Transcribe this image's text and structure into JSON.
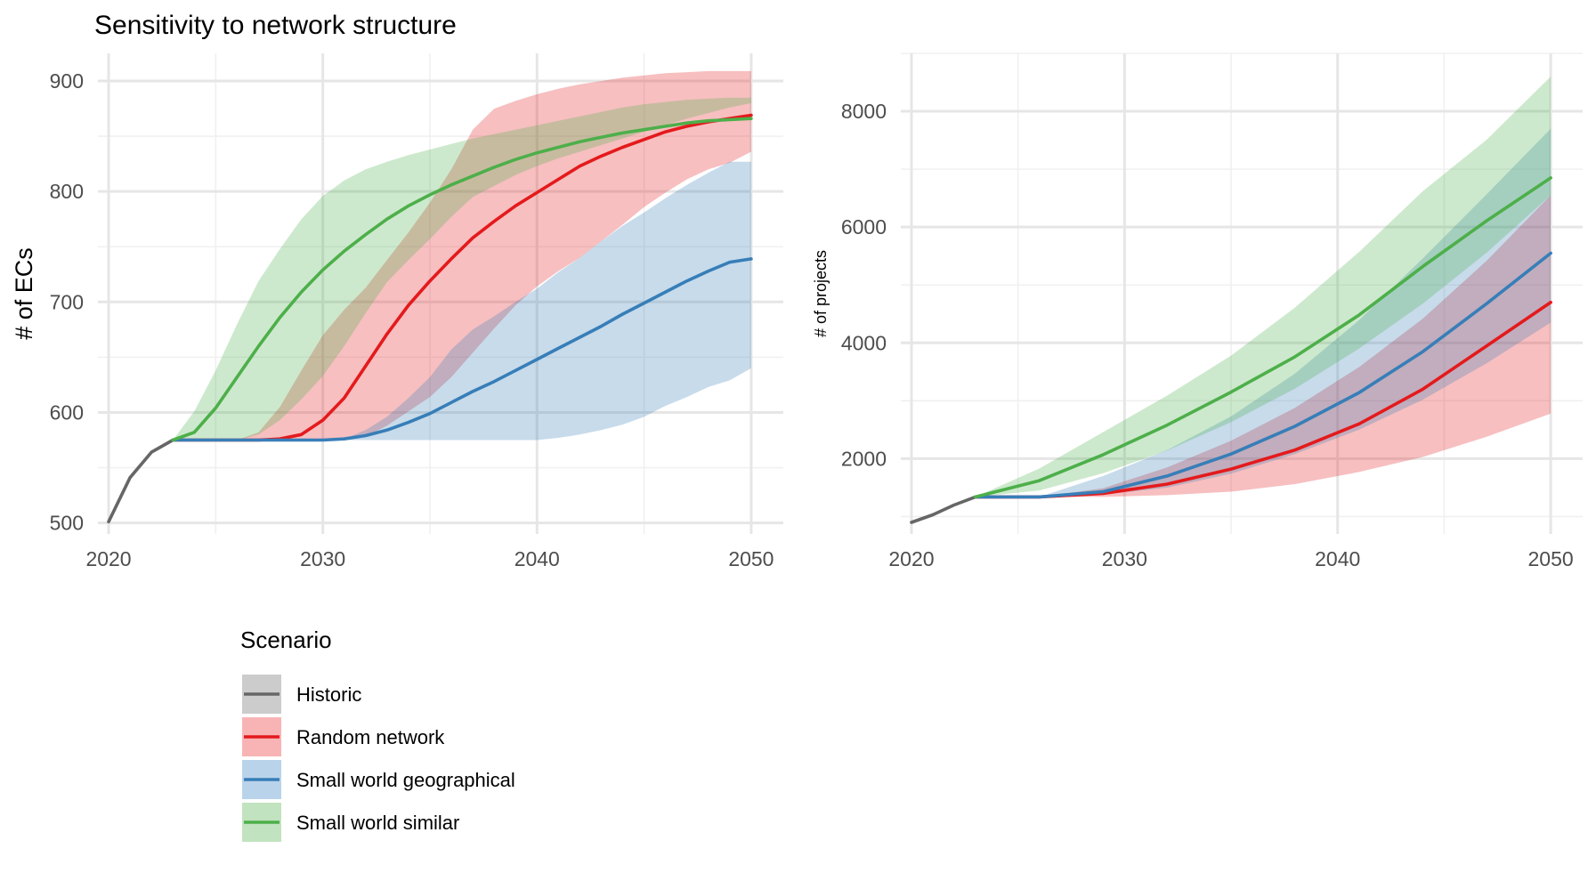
{
  "title": "Sensitivity to network structure",
  "colors": {
    "Historic": "#666666",
    "Random network": "#e41a1c",
    "Small world geographical": "#377eb8",
    "Small world similar": "#4daf4a",
    "historic_band": "#cccccc",
    "random_band": "#f8b4b5",
    "geo_band": "#b9d3ea",
    "similar_band": "#c2e3bf"
  },
  "legend": {
    "title": "Scenario",
    "entries": [
      "Historic",
      "Random network",
      "Small world geographical",
      "Small world similar"
    ]
  },
  "chart_data": [
    {
      "type": "line",
      "ylabel": "# of ECs",
      "xlabel": "",
      "xlim": [
        2019.5,
        2051.5
      ],
      "ylim": [
        490,
        925
      ],
      "xticks": [
        2020,
        2030,
        2040,
        2050
      ],
      "yticks": [
        500,
        600,
        700,
        800,
        900
      ],
      "grid": true,
      "series": [
        {
          "name": "Historic",
          "x": [
            2020,
            2021,
            2022,
            2023
          ],
          "y": [
            501,
            541,
            564,
            575
          ]
        },
        {
          "name": "Random network",
          "x": [
            2023,
            2024,
            2025,
            2026,
            2027,
            2028,
            2029,
            2030,
            2031,
            2032,
            2033,
            2034,
            2035,
            2036,
            2037,
            2038,
            2039,
            2040,
            2041,
            2042,
            2043,
            2044,
            2045,
            2046,
            2047,
            2048,
            2049,
            2050
          ],
          "y": [
            575,
            575,
            575,
            575,
            575,
            576,
            580,
            593,
            613,
            642,
            671,
            697,
            719,
            739,
            758,
            773,
            787,
            799,
            811,
            823,
            832,
            840,
            847,
            854,
            859,
            863,
            866,
            869
          ],
          "lower": [
            575,
            575,
            575,
            575,
            575,
            575,
            575,
            575,
            575,
            578,
            588,
            601,
            614,
            632,
            654,
            676,
            697,
            714,
            728,
            740,
            755,
            770,
            786,
            799,
            811,
            820,
            826,
            836
          ],
          "upper": [
            575,
            575,
            575,
            575,
            582,
            605,
            638,
            670,
            693,
            713,
            738,
            763,
            790,
            820,
            856,
            875,
            882,
            888,
            893,
            897,
            900,
            903,
            905,
            907,
            908,
            909,
            909,
            909
          ]
        },
        {
          "name": "Small world geographical",
          "x": [
            2023,
            2024,
            2025,
            2026,
            2027,
            2028,
            2029,
            2030,
            2031,
            2032,
            2033,
            2034,
            2035,
            2036,
            2037,
            2038,
            2039,
            2040,
            2041,
            2042,
            2043,
            2044,
            2045,
            2046,
            2047,
            2048,
            2049,
            2050
          ],
          "y": [
            575,
            575,
            575,
            575,
            575,
            575,
            575,
            575,
            576,
            579,
            584,
            591,
            599,
            609,
            619,
            628,
            638,
            648,
            658,
            668,
            678,
            689,
            699,
            709,
            719,
            728,
            736,
            739
          ],
          "lower": [
            575,
            575,
            575,
            575,
            575,
            575,
            575,
            575,
            575,
            575,
            575,
            575,
            575,
            575,
            575,
            575,
            575,
            575,
            577,
            580,
            584,
            589,
            596,
            606,
            614,
            623,
            629,
            640
          ],
          "upper": [
            575,
            575,
            575,
            575,
            575,
            575,
            575,
            575,
            576,
            584,
            596,
            613,
            632,
            657,
            675,
            687,
            700,
            712,
            727,
            740,
            755,
            769,
            781,
            794,
            806,
            817,
            827,
            827
          ]
        },
        {
          "name": "Small world similar",
          "x": [
            2023,
            2024,
            2025,
            2026,
            2027,
            2028,
            2029,
            2030,
            2031,
            2032,
            2033,
            2034,
            2035,
            2036,
            2037,
            2038,
            2039,
            2040,
            2041,
            2042,
            2043,
            2044,
            2045,
            2046,
            2047,
            2048,
            2049,
            2050
          ],
          "y": [
            575,
            582,
            604,
            632,
            660,
            686,
            709,
            729,
            746,
            761,
            775,
            787,
            797,
            806,
            814,
            822,
            829,
            835,
            840,
            845,
            849,
            853,
            856,
            859,
            862,
            864,
            865,
            866
          ],
          "lower": [
            575,
            575,
            575,
            575,
            580,
            593,
            612,
            633,
            660,
            690,
            718,
            738,
            757,
            777,
            795,
            805,
            815,
            823,
            830,
            836,
            842,
            848,
            854,
            860,
            866,
            871,
            876,
            880
          ],
          "upper": [
            575,
            601,
            638,
            680,
            719,
            748,
            775,
            796,
            810,
            820,
            827,
            833,
            838,
            843,
            848,
            852,
            856,
            860,
            864,
            868,
            872,
            876,
            879,
            881,
            883,
            884,
            885,
            885
          ]
        }
      ]
    },
    {
      "type": "line",
      "ylabel": "# of projects",
      "xlabel": "",
      "xlim": [
        2019.5,
        2051.5
      ],
      "ylim": [
        700,
        9000
      ],
      "xticks": [
        2020,
        2030,
        2040,
        2050
      ],
      "yticks": [
        2000,
        4000,
        6000,
        8000
      ],
      "grid": true,
      "series": [
        {
          "name": "Historic",
          "x": [
            2020,
            2021,
            2022,
            2023
          ],
          "y": [
            900,
            1030,
            1200,
            1340
          ]
        },
        {
          "name": "Random network",
          "x": [
            2023,
            2026,
            2029,
            2032,
            2035,
            2038,
            2041,
            2044,
            2047,
            2050
          ],
          "y": [
            1340,
            1340,
            1400,
            1560,
            1820,
            2150,
            2600,
            3200,
            3950,
            4700
          ],
          "lower": [
            1340,
            1340,
            1340,
            1370,
            1430,
            1560,
            1770,
            2030,
            2380,
            2780
          ],
          "upper": [
            1340,
            1340,
            1490,
            1850,
            2310,
            2880,
            3580,
            4420,
            5420,
            6550
          ]
        },
        {
          "name": "Small world geographical",
          "x": [
            2023,
            2026,
            2029,
            2032,
            2035,
            2038,
            2041,
            2044,
            2047,
            2050
          ],
          "y": [
            1340,
            1340,
            1430,
            1700,
            2080,
            2560,
            3140,
            3850,
            4680,
            5550
          ],
          "lower": [
            1340,
            1340,
            1380,
            1500,
            1740,
            2080,
            2500,
            3020,
            3650,
            4350
          ],
          "upper": [
            1340,
            1340,
            1700,
            2150,
            2730,
            3470,
            4390,
            5460,
            6570,
            7700
          ]
        },
        {
          "name": "Small world similar",
          "x": [
            2023,
            2026,
            2029,
            2032,
            2035,
            2038,
            2041,
            2044,
            2047,
            2050
          ],
          "y": [
            1340,
            1620,
            2070,
            2580,
            3150,
            3760,
            4480,
            5320,
            6110,
            6850
          ],
          "lower": [
            1340,
            1450,
            1750,
            2140,
            2630,
            3210,
            3900,
            4680,
            5560,
            6550
          ],
          "upper": [
            1340,
            1830,
            2460,
            3090,
            3780,
            4610,
            5570,
            6620,
            7510,
            8600
          ]
        }
      ]
    }
  ]
}
